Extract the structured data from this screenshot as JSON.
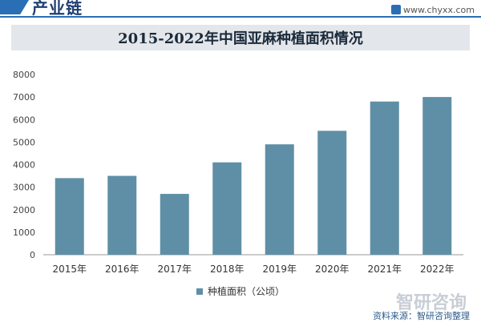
{
  "header": {
    "brand": "产业链",
    "url": "www.chyxx.com"
  },
  "chart_data": {
    "type": "bar",
    "title": "2015-2022年中国亚麻种植面积情况",
    "categories": [
      "2015年",
      "2016年",
      "2017年",
      "2018年",
      "2019年",
      "2020年",
      "2021年",
      "2022年"
    ],
    "series": [
      {
        "name": "种植面积（公顷）",
        "values": [
          3400,
          3500,
          2700,
          4100,
          4900,
          5500,
          6800,
          7000
        ]
      }
    ],
    "ylim": [
      0,
      8000
    ],
    "yticks": [
      0,
      1000,
      2000,
      3000,
      4000,
      5000,
      6000,
      7000,
      8000
    ],
    "grid": false,
    "legend_position": "bottom",
    "bar_color": "#5f8fa6"
  },
  "footer": {
    "logo_text": "智研咨询",
    "source": "资料来源：智研咨询整理"
  }
}
